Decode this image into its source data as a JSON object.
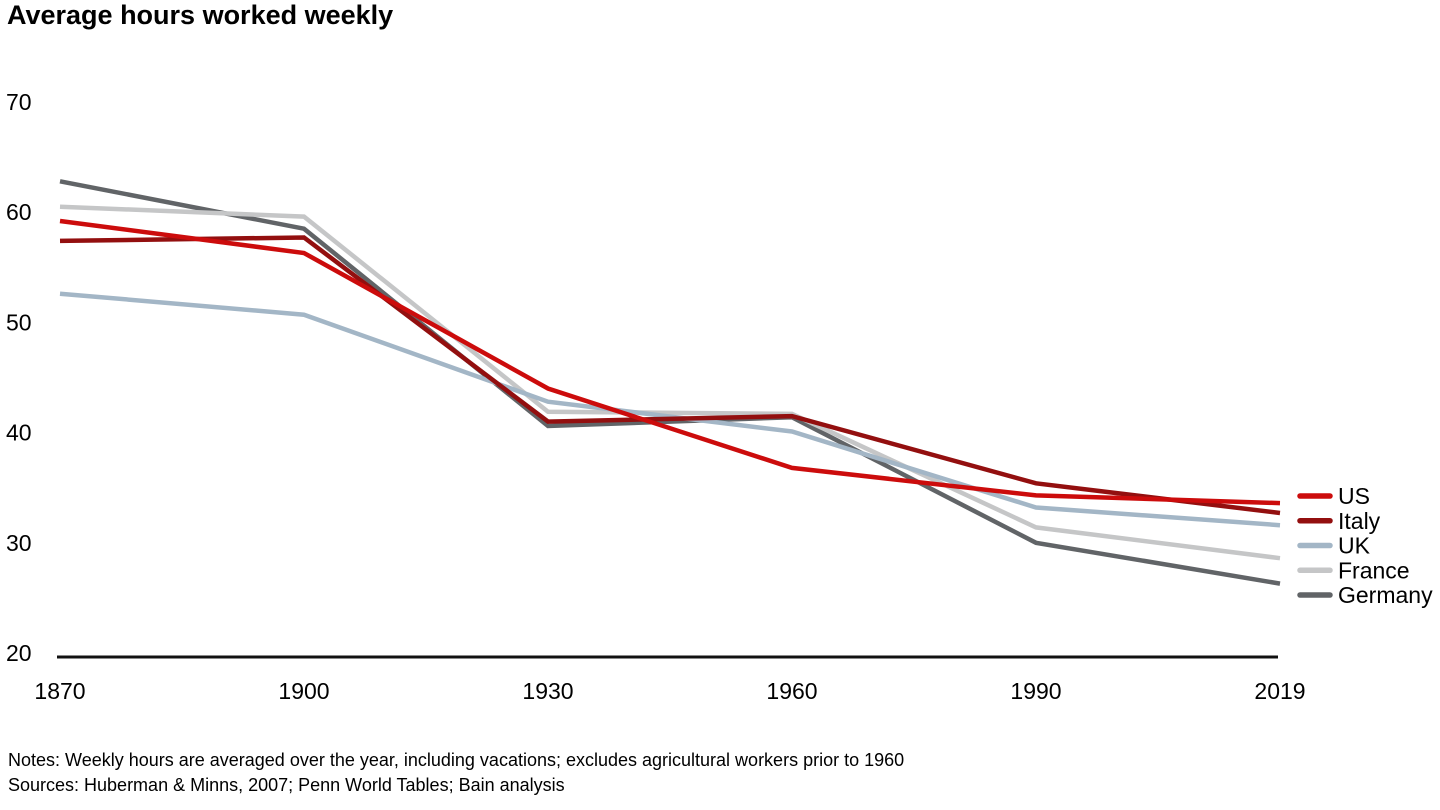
{
  "title": "Average hours worked weekly",
  "notes": "Notes: Weekly hours are averaged over the year, including vacations; excludes agricultural workers prior to 1960",
  "sources": "Sources: Huberman & Minns, 2007; Penn World Tables; Bain analysis",
  "chart_data": {
    "type": "line",
    "title": "Average hours worked weekly",
    "xlabel": "",
    "ylabel": "",
    "categories": [
      "1870",
      "1900",
      "1930",
      "1960",
      "1990",
      "2019"
    ],
    "yticks": [
      20,
      30,
      40,
      50,
      60,
      70
    ],
    "ylim": [
      20,
      70
    ],
    "grid": false,
    "legend_position": "right",
    "axis_color": "#111111",
    "text_color": "#000000",
    "series": [
      {
        "name": "US",
        "color": "#cc0c0c",
        "values": [
          59.2,
          56.3,
          44.0,
          36.8,
          34.3,
          33.6
        ]
      },
      {
        "name": "Italy",
        "color": "#930f0f",
        "values": [
          57.4,
          57.7,
          41.0,
          41.5,
          35.4,
          32.7
        ]
      },
      {
        "name": "UK",
        "color": "#a3b6c6",
        "values": [
          52.6,
          50.7,
          42.8,
          40.1,
          33.2,
          31.6
        ]
      },
      {
        "name": "France",
        "color": "#c5c6c7",
        "values": [
          60.5,
          59.6,
          41.9,
          41.7,
          31.4,
          28.6
        ]
      },
      {
        "name": "Germany",
        "color": "#616467",
        "values": [
          62.8,
          58.5,
          40.6,
          41.4,
          30.0,
          26.3
        ]
      }
    ]
  }
}
